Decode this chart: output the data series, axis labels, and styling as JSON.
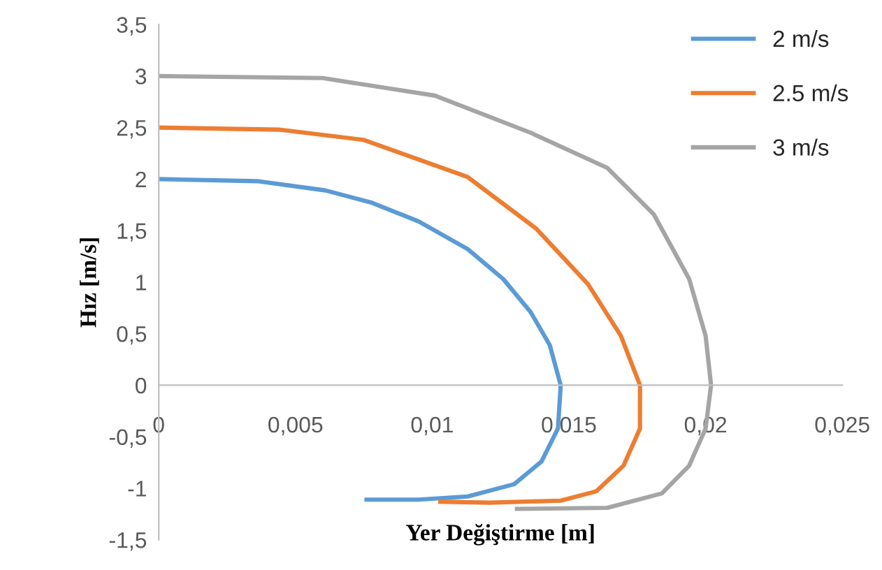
{
  "chart_data": {
    "type": "line",
    "xlabel": "Yer Değiştirme [m]",
    "ylabel": "Hız [m/s]",
    "xlim": [
      0,
      0.025
    ],
    "ylim": [
      -1.5,
      3.5
    ],
    "xticks": [
      0,
      {
        "value": 0.005,
        "label": "0,005"
      },
      {
        "value": 0.01,
        "label": "0,01"
      },
      {
        "value": 0.015,
        "label": "0,015"
      },
      {
        "value": 0.02,
        "label": "0,02"
      },
      {
        "value": 0.025,
        "label": "0,025"
      }
    ],
    "yticks": [
      {
        "value": -1.5,
        "label": "-1,5"
      },
      -1,
      {
        "value": -0.5,
        "label": "-0,5"
      },
      0,
      {
        "value": 0.5,
        "label": "0,5"
      },
      1,
      {
        "value": 1.5,
        "label": "1,5"
      },
      2,
      {
        "value": 2.5,
        "label": "2,5"
      },
      3,
      {
        "value": 3.5,
        "label": "3,5"
      }
    ],
    "grid": false,
    "legend": "top right",
    "marker": "none",
    "line_style": "solid",
    "series": [
      {
        "name": "2 m/s",
        "color": "#5b9bd5",
        "x": [
          0,
          0.0036,
          0.0061,
          0.0078,
          0.0095,
          0.0113,
          0.0126,
          0.0136,
          0.0143,
          0.0147,
          0.0146,
          0.014,
          0.013,
          0.0113,
          0.0095,
          0.0076
        ],
        "values": [
          2.0,
          1.98,
          1.89,
          1.77,
          1.59,
          1.32,
          1.03,
          0.71,
          0.39,
          0,
          -0.42,
          -0.74,
          -0.96,
          -1.08,
          -1.11,
          -1.11
        ]
      },
      {
        "name": "2.5 m/s",
        "color": "#ed7d31",
        "x": [
          0,
          0.0044,
          0.0075,
          0.0113,
          0.0138,
          0.0157,
          0.0169,
          0.0176,
          0.0176,
          0.017,
          0.016,
          0.0147,
          0.0121,
          0.0103
        ],
        "values": [
          2.5,
          2.48,
          2.38,
          2.02,
          1.52,
          0.98,
          0.48,
          0,
          -0.42,
          -0.78,
          -1.03,
          -1.12,
          -1.14,
          -1.13
        ]
      },
      {
        "name": "3 m/s",
        "color": "#a5a5a5",
        "x": [
          0,
          0.006,
          0.0101,
          0.0136,
          0.0164,
          0.0181,
          0.0194,
          0.02,
          0.0202,
          0.02,
          0.0194,
          0.0184,
          0.0164,
          0.0131
        ],
        "values": [
          3.0,
          2.98,
          2.81,
          2.45,
          2.11,
          1.66,
          1.03,
          0.48,
          0,
          -0.42,
          -0.78,
          -1.05,
          -1.19,
          -1.2
        ]
      }
    ]
  }
}
